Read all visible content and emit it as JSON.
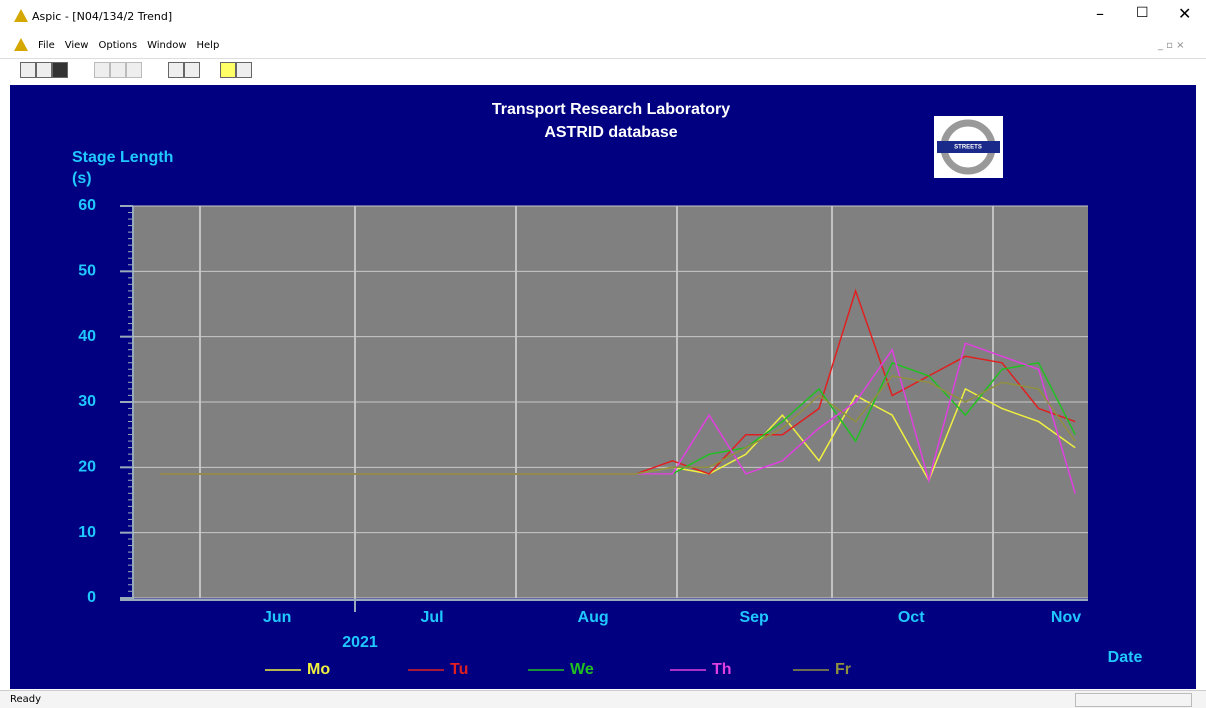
{
  "window": {
    "title": "Aspic - [N04/134/2 Trend]",
    "menu": [
      "File",
      "View",
      "Options",
      "Window",
      "Help"
    ],
    "status": "Ready"
  },
  "chart_data": {
    "type": "line",
    "title": [
      "Transport Research Laboratory",
      "ASTRID database"
    ],
    "logo_text": "STREETS",
    "y_label": [
      "Stage Length",
      "(s)"
    ],
    "x_label": "Date",
    "year_label": "2021",
    "categories": [
      null,
      null,
      null,
      null,
      null,
      null,
      null,
      null,
      null,
      null,
      null,
      null,
      null,
      null,
      null,
      null,
      null,
      null,
      null,
      null,
      null,
      null,
      null,
      null,
      null,
      null
    ],
    "xlim": [
      -0.74,
      25.35
    ],
    "xticks": [
      {
        "value": 3.2,
        "label": "Jun"
      },
      {
        "value": 7.43,
        "label": "Jul"
      },
      {
        "value": 11.83,
        "label": "Aug"
      },
      {
        "value": 16.23,
        "label": "Sep"
      },
      {
        "value": 20.52,
        "label": "Oct"
      },
      {
        "value": 24.75,
        "label": "Nov"
      }
    ],
    "ylim": [
      0,
      60
    ],
    "yticks": [
      0,
      10,
      20,
      30,
      40,
      50,
      60
    ],
    "grid": true,
    "series": [
      {
        "name": "Mo",
        "color": "#f0f040",
        "values": [
          19,
          19,
          19,
          19,
          19,
          19,
          19,
          19,
          19,
          19,
          19,
          19,
          19,
          19,
          20,
          19,
          22,
          28,
          21,
          31,
          28,
          18,
          32,
          29,
          27,
          23
        ]
      },
      {
        "name": "Tu",
        "color": "#e02020",
        "values": [
          19,
          19,
          19,
          19,
          19,
          19,
          19,
          19,
          19,
          19,
          19,
          19,
          19,
          19,
          21,
          19,
          25,
          25,
          29,
          47,
          31,
          34,
          37,
          36,
          29,
          27
        ]
      },
      {
        "name": "We",
        "color": "#20c020",
        "values": [
          19,
          19,
          19,
          19,
          19,
          19,
          19,
          19,
          19,
          19,
          19,
          19,
          19,
          19,
          19,
          22,
          23,
          27,
          32,
          24,
          36,
          34,
          28,
          35,
          36,
          25
        ]
      },
      {
        "name": "Th",
        "color": "#e040e0",
        "values": [
          19,
          19,
          19,
          19,
          19,
          19,
          19,
          19,
          19,
          19,
          19,
          19,
          19,
          19,
          19,
          28,
          19,
          21,
          26,
          30,
          38,
          18,
          39,
          37,
          35,
          16
        ]
      },
      {
        "name": "Fr",
        "color": "#909040",
        "values": [
          19,
          19,
          19,
          19,
          19,
          19,
          19,
          19,
          19,
          19,
          19,
          19,
          19,
          19,
          20,
          20,
          23,
          26,
          31,
          27,
          34,
          33,
          30,
          33,
          32,
          24
        ]
      }
    ]
  }
}
